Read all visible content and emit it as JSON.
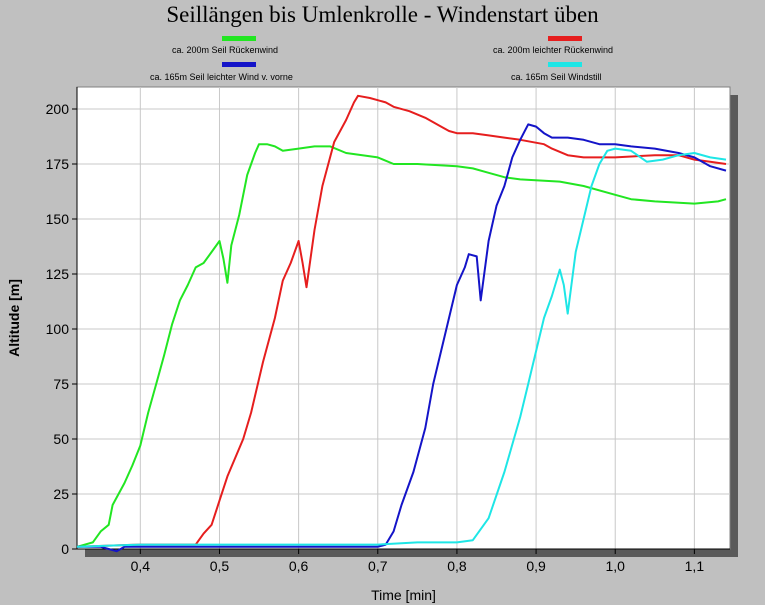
{
  "chart_data": {
    "type": "line",
    "title": "Seillängen bis Umlenkrolle - Windenstart üben",
    "xlabel": "Time [min]",
    "ylabel": "Altitude [m]",
    "xlim": [
      0.32,
      1.145
    ],
    "ylim": [
      0,
      210
    ],
    "x_ticks": [
      "0,4",
      "0,5",
      "0,6",
      "0,7",
      "0,8",
      "0,9",
      "1,0",
      "1,1"
    ],
    "y_ticks": [
      "0",
      "25",
      "50",
      "75",
      "100",
      "125",
      "150",
      "175",
      "200"
    ],
    "grid": true,
    "legend_position": "top",
    "series": [
      {
        "name": "ca. 200m Seil Rückenwind",
        "color": "#22e622",
        "points": [
          [
            0.32,
            1
          ],
          [
            0.34,
            3
          ],
          [
            0.35,
            8
          ],
          [
            0.36,
            11
          ],
          [
            0.365,
            20
          ],
          [
            0.38,
            30
          ],
          [
            0.39,
            38
          ],
          [
            0.4,
            47
          ],
          [
            0.41,
            62
          ],
          [
            0.42,
            75
          ],
          [
            0.43,
            88
          ],
          [
            0.44,
            102
          ],
          [
            0.45,
            113
          ],
          [
            0.46,
            120
          ],
          [
            0.47,
            128
          ],
          [
            0.48,
            130
          ],
          [
            0.49,
            135
          ],
          [
            0.5,
            140
          ],
          [
            0.505,
            132
          ],
          [
            0.51,
            121
          ],
          [
            0.515,
            138
          ],
          [
            0.525,
            152
          ],
          [
            0.535,
            170
          ],
          [
            0.545,
            180
          ],
          [
            0.55,
            184
          ],
          [
            0.56,
            184
          ],
          [
            0.57,
            183
          ],
          [
            0.58,
            181
          ],
          [
            0.6,
            182
          ],
          [
            0.62,
            183
          ],
          [
            0.64,
            183
          ],
          [
            0.66,
            180
          ],
          [
            0.7,
            178
          ],
          [
            0.72,
            175
          ],
          [
            0.75,
            175
          ],
          [
            0.8,
            174
          ],
          [
            0.82,
            173
          ],
          [
            0.84,
            171
          ],
          [
            0.86,
            169
          ],
          [
            0.88,
            168
          ],
          [
            0.93,
            167
          ],
          [
            0.96,
            165
          ],
          [
            1.0,
            161
          ],
          [
            1.02,
            159
          ],
          [
            1.05,
            158
          ],
          [
            1.1,
            157
          ],
          [
            1.13,
            158
          ],
          [
            1.14,
            159
          ]
        ]
      },
      {
        "name": "ca. 200m leichter Rückenwind",
        "color": "#e61e1e",
        "points": [
          [
            0.32,
            1
          ],
          [
            0.4,
            2
          ],
          [
            0.45,
            2
          ],
          [
            0.47,
            2
          ],
          [
            0.48,
            7
          ],
          [
            0.49,
            11
          ],
          [
            0.5,
            22
          ],
          [
            0.51,
            33
          ],
          [
            0.53,
            50
          ],
          [
            0.54,
            62
          ],
          [
            0.555,
            85
          ],
          [
            0.57,
            105
          ],
          [
            0.58,
            122
          ],
          [
            0.59,
            130
          ],
          [
            0.6,
            140
          ],
          [
            0.605,
            130
          ],
          [
            0.61,
            119
          ],
          [
            0.62,
            145
          ],
          [
            0.63,
            165
          ],
          [
            0.645,
            185
          ],
          [
            0.66,
            195
          ],
          [
            0.67,
            203
          ],
          [
            0.675,
            206
          ],
          [
            0.69,
            205
          ],
          [
            0.7,
            204
          ],
          [
            0.71,
            203
          ],
          [
            0.72,
            201
          ],
          [
            0.74,
            199
          ],
          [
            0.76,
            196
          ],
          [
            0.78,
            192
          ],
          [
            0.79,
            190
          ],
          [
            0.8,
            189
          ],
          [
            0.82,
            189
          ],
          [
            0.84,
            188
          ],
          [
            0.86,
            187
          ],
          [
            0.88,
            186
          ],
          [
            0.91,
            184
          ],
          [
            0.92,
            182
          ],
          [
            0.94,
            179
          ],
          [
            0.96,
            178
          ],
          [
            1.0,
            178
          ],
          [
            1.05,
            179
          ],
          [
            1.08,
            179
          ],
          [
            1.1,
            177
          ],
          [
            1.12,
            176
          ],
          [
            1.14,
            175
          ]
        ]
      },
      {
        "name": "ca. 165m Seil leichter Wind v. vorne",
        "color": "#1414c8",
        "points": [
          [
            0.32,
            1
          ],
          [
            0.35,
            1
          ],
          [
            0.36,
            0
          ],
          [
            0.37,
            -1
          ],
          [
            0.38,
            1
          ],
          [
            0.45,
            1
          ],
          [
            0.55,
            1
          ],
          [
            0.6,
            1
          ],
          [
            0.65,
            1
          ],
          [
            0.7,
            1
          ],
          [
            0.71,
            2
          ],
          [
            0.72,
            8
          ],
          [
            0.73,
            20
          ],
          [
            0.745,
            35
          ],
          [
            0.76,
            55
          ],
          [
            0.77,
            75
          ],
          [
            0.78,
            90
          ],
          [
            0.79,
            105
          ],
          [
            0.8,
            120
          ],
          [
            0.81,
            128
          ],
          [
            0.815,
            134
          ],
          [
            0.825,
            133
          ],
          [
            0.83,
            113
          ],
          [
            0.84,
            140
          ],
          [
            0.85,
            156
          ],
          [
            0.86,
            165
          ],
          [
            0.87,
            178
          ],
          [
            0.88,
            186
          ],
          [
            0.89,
            193
          ],
          [
            0.9,
            192
          ],
          [
            0.91,
            189
          ],
          [
            0.92,
            187
          ],
          [
            0.94,
            187
          ],
          [
            0.96,
            186
          ],
          [
            0.98,
            184
          ],
          [
            1.0,
            184
          ],
          [
            1.02,
            183
          ],
          [
            1.05,
            182
          ],
          [
            1.08,
            180
          ],
          [
            1.1,
            178
          ],
          [
            1.12,
            174
          ],
          [
            1.14,
            172
          ]
        ]
      },
      {
        "name": "ca. 165m Seil Windstill",
        "color": "#1ee6e6",
        "points": [
          [
            0.32,
            1
          ],
          [
            0.4,
            2
          ],
          [
            0.5,
            2
          ],
          [
            0.6,
            2
          ],
          [
            0.7,
            2
          ],
          [
            0.75,
            3
          ],
          [
            0.8,
            3
          ],
          [
            0.82,
            4
          ],
          [
            0.84,
            14
          ],
          [
            0.86,
            35
          ],
          [
            0.88,
            60
          ],
          [
            0.89,
            75
          ],
          [
            0.9,
            90
          ],
          [
            0.91,
            105
          ],
          [
            0.92,
            115
          ],
          [
            0.93,
            127
          ],
          [
            0.935,
            120
          ],
          [
            0.94,
            107
          ],
          [
            0.95,
            135
          ],
          [
            0.96,
            150
          ],
          [
            0.97,
            165
          ],
          [
            0.98,
            175
          ],
          [
            0.99,
            181
          ],
          [
            1.0,
            182
          ],
          [
            1.02,
            181
          ],
          [
            1.04,
            176
          ],
          [
            1.06,
            177
          ],
          [
            1.08,
            179
          ],
          [
            1.1,
            180
          ],
          [
            1.12,
            178
          ],
          [
            1.14,
            177
          ]
        ]
      }
    ]
  }
}
